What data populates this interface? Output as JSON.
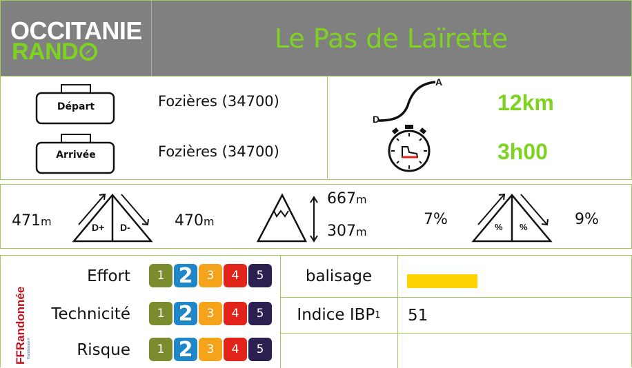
{
  "header": {
    "logo_line1": "OCCITANIE",
    "logo_line2": "RAND",
    "title": "Le Pas de Laïrette"
  },
  "route": {
    "depart_label": "Départ",
    "arrivee_label": "Arrivée",
    "depart_place": "Fozières (34700)",
    "arrivee_place": "Fozières (34700)",
    "profile_start": "D",
    "profile_end": "A",
    "distance": "12km",
    "duration": "3h00"
  },
  "elevation": {
    "gain_value": "471",
    "gain_unit": "m",
    "gain_icon_label": "D+",
    "loss_icon_label": "D-",
    "loss_value": "470",
    "loss_unit": "m",
    "max_value": "667",
    "max_unit": "m",
    "min_value": "307",
    "min_unit": "m",
    "slope_up": "7%",
    "slope_down": "9%",
    "slope_icon_label": "%"
  },
  "ratings": {
    "scale": [
      "1",
      "2",
      "3",
      "4",
      "5"
    ],
    "colors": [
      "#7a8c2e",
      "#1f87c8",
      "#f5a31a",
      "#e2231a",
      "#2b2050"
    ],
    "items": [
      {
        "label": "Effort",
        "selected": 2
      },
      {
        "label": "Technicité",
        "selected": 2
      },
      {
        "label": "Risque",
        "selected": 2
      }
    ]
  },
  "info": {
    "balisage_label": "balisage",
    "balisage_color": "#ffd500",
    "ibp_label": "Indice IBP",
    "ibp_sup": "1",
    "ibp_value": "51"
  },
  "colors": {
    "accent": "#7ed321",
    "header_bg": "#808080",
    "border": "#9ccf5a"
  }
}
